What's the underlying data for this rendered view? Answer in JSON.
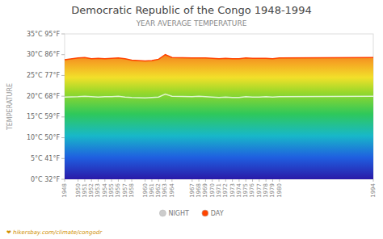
{
  "chart_data": {
    "type": "area",
    "title": "Democratic Republic of the Congo 1948-1994",
    "subtitle": "YEAR AVERAGE TEMPERATURE",
    "y_label": "TEMPERATURE",
    "annotations": [
      "❤ hikersbay.com/climate/congodr"
    ],
    "x": [
      1948,
      1950,
      1951,
      1952,
      1953,
      1954,
      1955,
      1956,
      1957,
      1958,
      1960,
      1961,
      1962,
      1963,
      1964,
      1967,
      1968,
      1969,
      1970,
      1971,
      1972,
      1973,
      1974,
      1975,
      1976,
      1977,
      1978,
      1979,
      1980,
      1994
    ],
    "series": [
      {
        "name": "NIGHT",
        "type": "line",
        "color": "#cccccc",
        "values": [
          19.8,
          19.9,
          20.0,
          19.9,
          19.8,
          19.9,
          19.9,
          20.0,
          19.8,
          19.7,
          19.6,
          19.7,
          19.8,
          20.5,
          20.0,
          19.9,
          20.0,
          19.9,
          19.8,
          19.7,
          19.8,
          19.7,
          19.7,
          19.9,
          19.8,
          19.8,
          19.9,
          19.8,
          19.9,
          20.0
        ]
      },
      {
        "name": "DAY",
        "type": "area",
        "color": "#ff4400",
        "values": [
          28.8,
          29.2,
          29.3,
          29.0,
          29.1,
          29.0,
          29.1,
          29.2,
          29.0,
          28.7,
          28.5,
          28.6,
          28.9,
          30.0,
          29.3,
          29.2,
          29.2,
          29.2,
          29.1,
          29.0,
          29.1,
          29.0,
          29.0,
          29.2,
          29.1,
          29.1,
          29.1,
          29.0,
          29.2,
          29.3
        ]
      }
    ],
    "xlim": [
      1948,
      1994
    ],
    "xticks": [
      1948,
      1950,
      1951,
      1952,
      1953,
      1954,
      1955,
      1956,
      1957,
      1958,
      1960,
      1961,
      1962,
      1963,
      1964,
      1967,
      1968,
      1969,
      1970,
      1971,
      1972,
      1973,
      1974,
      1975,
      1976,
      1977,
      1978,
      1979,
      1980,
      1994
    ],
    "ylim": [
      0,
      35
    ],
    "yticks": [
      {
        "value": 0,
        "label": "0°C 32°F"
      },
      {
        "value": 5,
        "label": "5°C 41°F"
      },
      {
        "value": 10,
        "label": "10°C 50°F"
      },
      {
        "value": 15,
        "label": "15°C 59°F"
      },
      {
        "value": 20,
        "label": "20°C 68°F"
      },
      {
        "value": 25,
        "label": "25°C 77°F"
      },
      {
        "value": 30,
        "label": "30°C 86°F"
      },
      {
        "value": 35,
        "label": "35°C 95°F"
      }
    ],
    "grid": false,
    "legend": "bottom"
  }
}
